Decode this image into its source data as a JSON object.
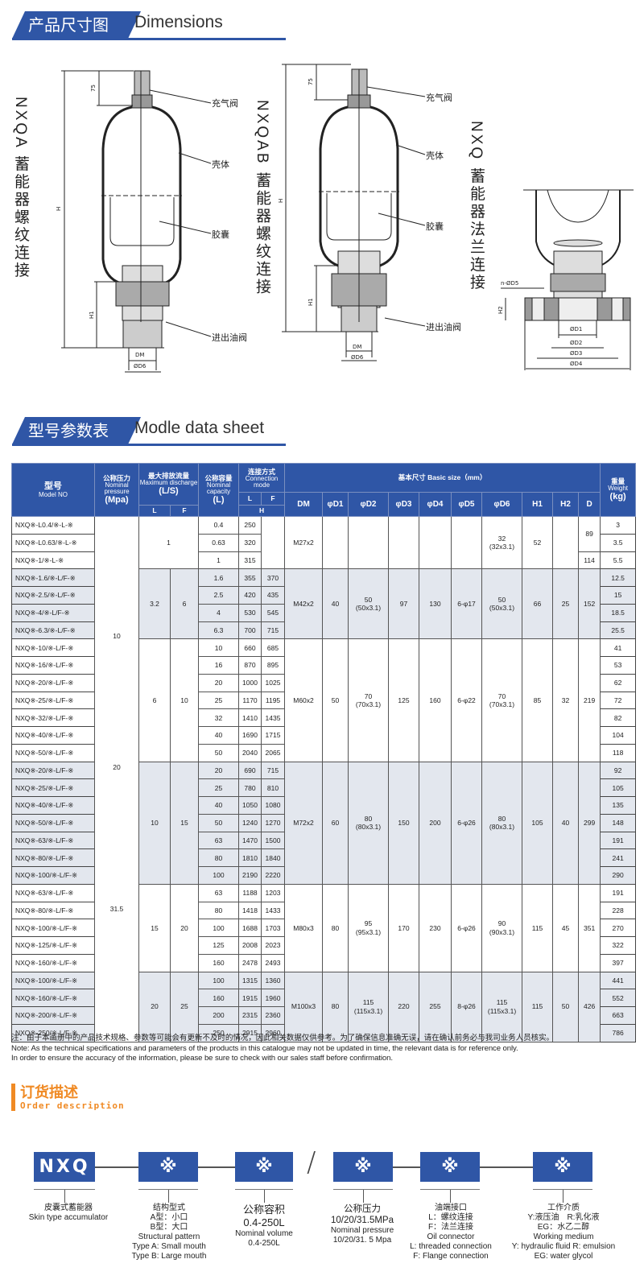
{
  "dimensions_header": {
    "cn": "产品尺寸图",
    "en": "Dimensions"
  },
  "datasheet_header": {
    "cn": "型号参数表",
    "en": "Modle data sheet"
  },
  "drawings": [
    {
      "title": "NXQA 蓄能器螺纹连接",
      "labels": [
        "充气阀",
        "壳体",
        "胶囊",
        "进出油阀"
      ],
      "dims": [
        "75",
        "H",
        "H1",
        "DM",
        "ØD6"
      ]
    },
    {
      "title": "NXQAB 蓄能器螺纹连接",
      "labels": [
        "充气阀",
        "壳体",
        "胶囊",
        "进出油阀"
      ],
      "dims": [
        "75",
        "H",
        "H1",
        "DM",
        "ØD6"
      ]
    },
    {
      "title": "NXQ 蓄能器法兰连接",
      "dims": [
        "n-ØD5",
        "H2",
        "ØD1",
        "ØD2",
        "ØD3",
        "ØD4"
      ]
    }
  ],
  "table": {
    "headers": {
      "model_cn": "型号",
      "model_en": "Model NO",
      "pressure_cn": "公称压力",
      "pressure_en": "Nominal pressure",
      "pressure_unit": "(Mpa)",
      "discharge_cn": "最大排放流量",
      "discharge_en": "Maximum discharge",
      "discharge_unit": "(L/S)",
      "capacity_cn": "公称容量",
      "capacity_en": "Nominal capacity",
      "capacity_unit": "(L)",
      "conn_cn": "连接方式",
      "conn_en": "Connection mode",
      "basic": "基本尺寸 Basic size（mm）",
      "weight_cn": "重量",
      "weight_en": "Weight",
      "weight_unit": "(kg)",
      "L": "L",
      "F": "F",
      "H": "H",
      "cols": [
        "DM",
        "φD1",
        "φD2",
        "φD3",
        "φD4",
        "φD5",
        "φD6",
        "H1",
        "H2",
        "D"
      ]
    },
    "pressure_labels": [
      "10",
      "20",
      "31.5"
    ],
    "groups": [
      {
        "shaded": false,
        "discharge": "1",
        "DM": "M27x2",
        "D1": "",
        "D2": "",
        "D2_sub": "",
        "D3": "",
        "D4": "",
        "D5": "",
        "D6": "32",
        "D6_sub": "(32x3.1)",
        "H1": "52",
        "H2": "",
        "D": [
          {
            "value": "89",
            "rows": 2
          },
          {
            "value": "114",
            "rows": 1
          }
        ],
        "rows": [
          {
            "model": "NXQ※-L0.4/※-L-※",
            "capacity": "0.4",
            "H_L": "250",
            "H_F": "",
            "weight": "3"
          },
          {
            "model": "NXQ※-L0.63/※-L-※",
            "capacity": "0.63",
            "H_L": "320",
            "H_F": "",
            "weight": "3.5"
          },
          {
            "model": "NXQ※-1/※-L-※",
            "capacity": "1",
            "H_L": "315",
            "H_F": "",
            "weight": "5.5"
          }
        ]
      },
      {
        "shaded": true,
        "discharge_L": "3.2",
        "discharge_F": "6",
        "DM": "M42x2",
        "D1": "40",
        "D2": "50",
        "D2_sub": "(50x3.1)",
        "D3": "97",
        "D4": "130",
        "D5": "6-φ17",
        "D6": "50",
        "D6_sub": "(50x3.1)",
        "H1": "66",
        "H2": "25",
        "D": [
          {
            "value": "152",
            "rows": 4
          }
        ],
        "rows": [
          {
            "model": "NXQ※-1.6/※-L/F-※",
            "capacity": "1.6",
            "H_L": "355",
            "H_F": "370",
            "weight": "12.5"
          },
          {
            "model": "NXQ※-2.5/※-L/F-※",
            "capacity": "2.5",
            "H_L": "420",
            "H_F": "435",
            "weight": "15"
          },
          {
            "model": "NXQ※-4/※-L/F-※",
            "capacity": "4",
            "H_L": "530",
            "H_F": "545",
            "weight": "18.5"
          },
          {
            "model": "NXQ※-6.3/※-L/F-※",
            "capacity": "6.3",
            "H_L": "700",
            "H_F": "715",
            "weight": "25.5"
          }
        ]
      },
      {
        "shaded": false,
        "discharge_L": "6",
        "discharge_F": "10",
        "DM": "M60x2",
        "D1": "50",
        "D2": "70",
        "D2_sub": "(70x3.1)",
        "D3": "125",
        "D4": "160",
        "D5": "6-φ22",
        "D6": "70",
        "D6_sub": "(70x3.1)",
        "H1": "85",
        "H2": "32",
        "D": [
          {
            "value": "219",
            "rows": 7
          }
        ],
        "rows": [
          {
            "model": "NXQ※-10/※-L/F-※",
            "capacity": "10",
            "H_L": "660",
            "H_F": "685",
            "weight": "41"
          },
          {
            "model": "NXQ※-16/※-L/F-※",
            "capacity": "16",
            "H_L": "870",
            "H_F": "895",
            "weight": "53"
          },
          {
            "model": "NXQ※-20/※-L/F-※",
            "capacity": "20",
            "H_L": "1000",
            "H_F": "1025",
            "weight": "62"
          },
          {
            "model": "NXQ※-25/※-L/F-※",
            "capacity": "25",
            "H_L": "1170",
            "H_F": "1195",
            "weight": "72"
          },
          {
            "model": "NXQ※-32/※-L/F-※",
            "capacity": "32",
            "H_L": "1410",
            "H_F": "1435",
            "weight": "82"
          },
          {
            "model": "NXQ※-40/※-L/F-※",
            "capacity": "40",
            "H_L": "1690",
            "H_F": "1715",
            "weight": "104"
          },
          {
            "model": "NXQ※-50/※-L/F-※",
            "capacity": "50",
            "H_L": "2040",
            "H_F": "2065",
            "weight": "118"
          }
        ]
      },
      {
        "shaded": true,
        "discharge_L": "10",
        "discharge_F": "15",
        "DM": "M72x2",
        "D1": "60",
        "D2": "80",
        "D2_sub": "(80x3.1)",
        "D3": "150",
        "D4": "200",
        "D5": "6-φ26",
        "D6": "80",
        "D6_sub": "(80x3.1)",
        "H1": "105",
        "H2": "40",
        "D": [
          {
            "value": "299",
            "rows": 7
          }
        ],
        "rows": [
          {
            "model": "NXQ※-20/※-L/F-※",
            "capacity": "20",
            "H_L": "690",
            "H_F": "715",
            "weight": "92"
          },
          {
            "model": "NXQ※-25/※-L/F-※",
            "capacity": "25",
            "H_L": "780",
            "H_F": "810",
            "weight": "105"
          },
          {
            "model": "NXQ※-40/※-L/F-※",
            "capacity": "40",
            "H_L": "1050",
            "H_F": "1080",
            "weight": "135"
          },
          {
            "model": "NXQ※-50/※-L/F-※",
            "capacity": "50",
            "H_L": "1240",
            "H_F": "1270",
            "weight": "148"
          },
          {
            "model": "NXQ※-63/※-L/F-※",
            "capacity": "63",
            "H_L": "1470",
            "H_F": "1500",
            "weight": "191"
          },
          {
            "model": "NXQ※-80/※-L/F-※",
            "capacity": "80",
            "H_L": "1810",
            "H_F": "1840",
            "weight": "241"
          },
          {
            "model": "NXQ※-100/※-L/F-※",
            "capacity": "100",
            "H_L": "2190",
            "H_F": "2220",
            "weight": "290"
          }
        ]
      },
      {
        "shaded": false,
        "discharge_L": "15",
        "discharge_F": "20",
        "DM": "M80x3",
        "D1": "80",
        "D2": "95",
        "D2_sub": "(95x3.1)",
        "D3": "170",
        "D4": "230",
        "D5": "6-φ26",
        "D6": "90",
        "D6_sub": "(90x3.1)",
        "H1": "115",
        "H2": "45",
        "D": [
          {
            "value": "351",
            "rows": 5
          }
        ],
        "rows": [
          {
            "model": "NXQ※-63/※-L/F-※",
            "capacity": "63",
            "H_L": "1188",
            "H_F": "1203",
            "weight": "191"
          },
          {
            "model": "NXQ※-80/※-L/F-※",
            "capacity": "80",
            "H_L": "1418",
            "H_F": "1433",
            "weight": "228"
          },
          {
            "model": "NXQ※-100/※-L/F-※",
            "capacity": "100",
            "H_L": "1688",
            "H_F": "1703",
            "weight": "270"
          },
          {
            "model": "NXQ※-125/※-L/F-※",
            "capacity": "125",
            "H_L": "2008",
            "H_F": "2023",
            "weight": "322"
          },
          {
            "model": "NXQ※-160/※-L/F-※",
            "capacity": "160",
            "H_L": "2478",
            "H_F": "2493",
            "weight": "397"
          }
        ]
      },
      {
        "shaded": true,
        "discharge_L": "20",
        "discharge_F": "25",
        "DM": "M100x3",
        "D1": "80",
        "D2": "115",
        "D2_sub": "(115x3.1)",
        "D3": "220",
        "D4": "255",
        "D5": "8-φ26",
        "D6": "115",
        "D6_sub": "(115x3.1)",
        "H1": "115",
        "H2": "50",
        "D": [
          {
            "value": "426",
            "rows": 4
          }
        ],
        "rows": [
          {
            "model": "NXQ※-100/※-L/F-※",
            "capacity": "100",
            "H_L": "1315",
            "H_F": "1360",
            "weight": "441"
          },
          {
            "model": "NXQ※-160/※-L/F-※",
            "capacity": "160",
            "H_L": "1915",
            "H_F": "1960",
            "weight": "552"
          },
          {
            "model": "NXQ※-200/※-L/F-※",
            "capacity": "200",
            "H_L": "2315",
            "H_F": "2360",
            "weight": "663"
          },
          {
            "model": "NXQ※-250/※-L/F-※",
            "capacity": "250",
            "H_L": "2915",
            "H_F": "2960",
            "weight": "786"
          }
        ]
      }
    ]
  },
  "notes": {
    "cn": "注：由于本画册中的产品技术规格、参数等可能会有更新不及时的情况，因此相关数据仅供参考。为了确保信息准确无误，请在确认前务必与我司业务人员核实。",
    "en1": "Note:  As the technical specifications and parameters of the products in this catalogue may not be updated in time, the relevant data is for reference only.",
    "en2": "In order to ensure the accuracy of the information, please be sure to check with our sales staff before confirmation."
  },
  "order": {
    "title_cn": "订货描述",
    "title_en": "Order description",
    "separator": "/",
    "boxes": [
      {
        "code": "NXQ",
        "caption": [
          "皮囊式蓄能器",
          "Skin type accumulator"
        ]
      },
      {
        "code": "※",
        "caption": [
          "结构型式",
          "A型：小口",
          "B型：大口",
          "Structural pattern",
          "Type A: Small mouth",
          "Type B: Large mouth"
        ]
      },
      {
        "code": "※",
        "caption": [
          "公称容积",
          "0.4-250L",
          "Nominal volume",
          "0.4-250L"
        ]
      },
      {
        "code": "※",
        "caption": [
          "公称压力",
          "10/20/31.5MPa",
          "Nominal pressure",
          "10/20/31. 5 Mpa"
        ]
      },
      {
        "code": "※",
        "caption": [
          "油端接口",
          "L：螺纹连接",
          "F：法兰连接",
          "Oil connector",
          "L: threaded connection",
          "F: Flange connection"
        ]
      },
      {
        "code": "※",
        "caption": [
          "工作介质",
          "Y:液压油　R:乳化液",
          "EG：水乙二醇",
          "Working medium",
          "Y: hydraulic fluid  R: emulsion",
          "EG: water glycol"
        ]
      }
    ]
  },
  "colors": {
    "brand_blue": "#2f56a6",
    "accent_orange": "#f08a24",
    "row_shade": "#e3e7ee"
  }
}
